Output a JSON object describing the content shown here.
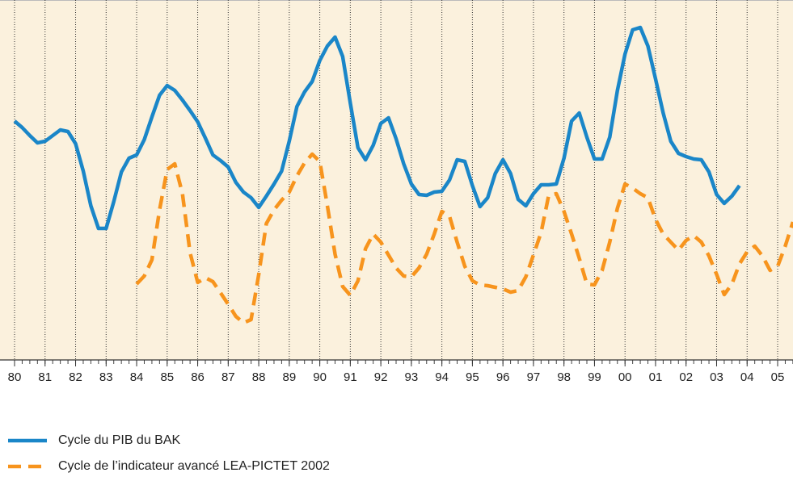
{
  "chart_data": {
    "type": "line",
    "x": [
      1980,
      1980.25,
      1980.5,
      1980.75,
      1981,
      1981.25,
      1981.5,
      1981.75,
      1982,
      1982.25,
      1982.5,
      1982.75,
      1983,
      1983.25,
      1983.5,
      1983.75,
      1984,
      1984.25,
      1984.5,
      1984.75,
      1985,
      1985.25,
      1985.5,
      1985.75,
      1986,
      1986.25,
      1986.5,
      1986.75,
      1987,
      1987.25,
      1987.5,
      1987.75,
      1988,
      1988.25,
      1988.5,
      1988.75,
      1989,
      1989.25,
      1989.5,
      1989.75,
      1990,
      1990.25,
      1990.5,
      1990.75,
      1991,
      1991.25,
      1991.5,
      1991.75,
      1992,
      1992.25,
      1992.5,
      1992.75,
      1993,
      1993.25,
      1993.5,
      1993.75,
      1994,
      1994.25,
      1994.5,
      1994.75,
      1995,
      1995.25,
      1995.5,
      1995.75,
      1996,
      1996.25,
      1996.5,
      1996.75,
      1997,
      1997.25,
      1997.5,
      1997.75,
      1998,
      1998.25,
      1998.5,
      1998.75,
      1999,
      1999.25,
      1999.5,
      1999.75,
      2000,
      2000.25,
      2000.5,
      2000.75,
      2001,
      2001.25,
      2001.5,
      2001.75,
      2002,
      2002.25,
      2002.5,
      2002.75,
      2003,
      2003.25,
      2003.5,
      2003.75,
      2004,
      2004.25,
      2004.5,
      2004.75,
      2005,
      2005.25,
      2005.5
    ],
    "series": [
      {
        "name": "Cycle du PIB du BAK",
        "color": "#1a86c8",
        "style": "solid",
        "values": [
          296,
          288,
          278,
          269,
          271,
          278,
          285,
          283,
          268,
          234,
          191,
          163,
          163,
          196,
          233,
          250,
          254,
          273,
          301,
          328,
          340,
          334,
          322,
          309,
          295,
          275,
          254,
          247,
          239,
          220,
          208,
          201,
          189,
          203,
          218,
          234,
          271,
          314,
          332,
          345,
          371,
          389,
          400,
          376,
          318,
          263,
          248,
          266,
          293,
          300,
          274,
          243,
          218,
          205,
          204,
          208,
          209,
          223,
          248,
          246,
          216,
          190,
          201,
          231,
          248,
          231,
          199,
          191,
          206,
          217,
          217,
          218,
          250,
          296,
          306,
          276,
          249,
          249,
          276,
          334,
          379,
          409,
          412,
          389,
          348,
          306,
          271,
          256,
          252,
          249,
          248,
          233,
          205,
          194,
          203,
          216,
          null,
          null,
          null,
          null,
          null,
          null,
          null
        ]
      },
      {
        "name": "Cycle de l’indicateur avancé LEA-PICTET 2002",
        "color": "#f7941d",
        "style": "dashed",
        "values": [
          null,
          null,
          null,
          null,
          null,
          null,
          null,
          null,
          null,
          null,
          null,
          null,
          null,
          null,
          null,
          null,
          94,
          104,
          124,
          186,
          236,
          243,
          206,
          133,
          96,
          102,
          97,
          83,
          69,
          54,
          46,
          50,
          106,
          169,
          186,
          198,
          208,
          228,
          244,
          255,
          246,
          191,
          131,
          91,
          80,
          98,
          138,
          156,
          146,
          130,
          114,
          104,
          103,
          114,
          131,
          156,
          184,
          178,
          146,
          116,
          98,
          93,
          92,
          90,
          88,
          84,
          86,
          103,
          130,
          158,
          204,
          206,
          184,
          156,
          126,
          94,
          93,
          111,
          146,
          188,
          218,
          213,
          206,
          201,
          174,
          156,
          146,
          136,
          148,
          154,
          146,
          129,
          106,
          81,
          94,
          119,
          134,
          141,
          129,
          111,
          116,
          141,
          171
        ]
      }
    ],
    "xlim": [
      1980,
      2005.5
    ],
    "xticks": [
      {
        "value": 1980,
        "label": "80"
      },
      {
        "value": 1981,
        "label": "81"
      },
      {
        "value": 1982,
        "label": "82"
      },
      {
        "value": 1983,
        "label": "83"
      },
      {
        "value": 1984,
        "label": "84"
      },
      {
        "value": 1985,
        "label": "85"
      },
      {
        "value": 1986,
        "label": "86"
      },
      {
        "value": 1987,
        "label": "87"
      },
      {
        "value": 1988,
        "label": "88"
      },
      {
        "value": 1989,
        "label": "89"
      },
      {
        "value": 1990,
        "label": "90"
      },
      {
        "value": 1991,
        "label": "91"
      },
      {
        "value": 1992,
        "label": "92"
      },
      {
        "value": 1993,
        "label": "93"
      },
      {
        "value": 1994,
        "label": "94"
      },
      {
        "value": 1995,
        "label": "95"
      },
      {
        "value": 1996,
        "label": "96"
      },
      {
        "value": 1997,
        "label": "97"
      },
      {
        "value": 1998,
        "label": "98"
      },
      {
        "value": 1999,
        "label": "99"
      },
      {
        "value": 2000,
        "label": "00"
      },
      {
        "value": 2001,
        "label": "01"
      },
      {
        "value": 2002,
        "label": "02"
      },
      {
        "value": 2003,
        "label": "03"
      },
      {
        "value": 2004,
        "label": "04"
      },
      {
        "value": 2005,
        "label": "05"
      }
    ],
    "ylim": [
      0,
      446
    ],
    "grid": true
  }
}
